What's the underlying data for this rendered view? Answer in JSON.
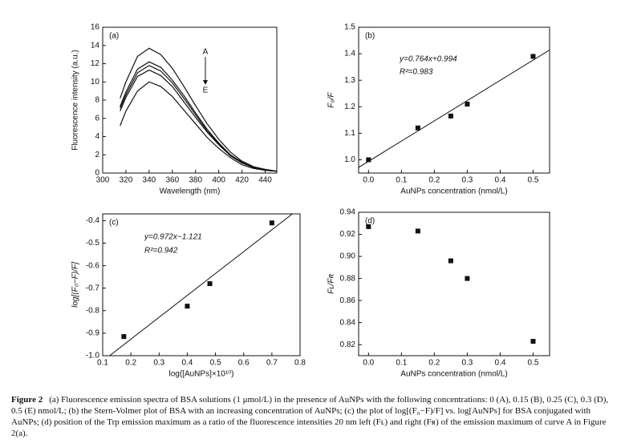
{
  "chart_data": [
    {
      "type": "line",
      "panel": "(a)",
      "xlabel": "Wavelength (nm)",
      "ylabel": "Fluorescence intensity (a.u.)",
      "x": [
        315,
        320,
        330,
        340,
        350,
        360,
        370,
        380,
        390,
        400,
        410,
        420,
        430,
        440,
        450
      ],
      "series": [
        {
          "color": "#111111",
          "values": [
            8.2,
            10.0,
            12.8,
            13.7,
            13.0,
            11.5,
            9.5,
            7.4,
            5.4,
            3.7,
            2.3,
            1.3,
            0.7,
            0.4,
            0.2
          ]
        },
        {
          "color": "#111111",
          "values": [
            7.3,
            8.9,
            11.4,
            12.2,
            11.6,
            10.2,
            8.5,
            6.6,
            4.8,
            3.3,
            2.0,
            1.2,
            0.6,
            0.4,
            0.2
          ]
        },
        {
          "color": "#111111",
          "values": [
            7.1,
            8.6,
            11.0,
            11.8,
            11.2,
            9.9,
            8.2,
            6.4,
            4.6,
            3.2,
            2.0,
            1.1,
            0.6,
            0.3,
            0.2
          ]
        },
        {
          "color": "#111111",
          "values": [
            6.8,
            8.3,
            10.6,
            11.3,
            10.7,
            9.5,
            7.8,
            6.1,
            4.5,
            3.1,
            1.9,
            1.1,
            0.6,
            0.3,
            0.2
          ]
        },
        {
          "color": "#111111",
          "values": [
            5.2,
            6.8,
            9.0,
            10.0,
            9.5,
            8.4,
            6.9,
            5.4,
            3.9,
            2.7,
            1.7,
            0.9,
            0.5,
            0.3,
            0.2
          ]
        }
      ],
      "arrow_start": "A",
      "arrow_end": "E",
      "xlim": [
        300,
        450
      ],
      "xticks": [
        300,
        320,
        340,
        360,
        380,
        400,
        420,
        440
      ],
      "ylim": [
        0,
        16
      ],
      "yticks": [
        0,
        2,
        4,
        6,
        8,
        10,
        12,
        14,
        16
      ]
    },
    {
      "type": "scatter",
      "panel": "(b)",
      "xlabel": "AuNPs concentration (nmol/L)",
      "ylabel": "F₀/F",
      "x": [
        0,
        0.15,
        0.25,
        0.3,
        0.5
      ],
      "values": [
        1.0,
        1.12,
        1.165,
        1.21,
        1.39
      ],
      "color": "#111111",
      "fit": {
        "slope": 0.764,
        "intercept": 0.994
      },
      "equation": "y=0.764x+0.994",
      "r_squared": "R²=0.983",
      "xlim": [
        -0.03,
        0.55
      ],
      "xticks": [
        {
          "value": 0,
          "label": "0.0"
        },
        0.1,
        0.2,
        0.3,
        0.4,
        0.5
      ],
      "ylim": [
        0.95,
        1.5
      ],
      "yticks": [
        {
          "value": 1,
          "label": "1.0"
        },
        1.1,
        1.2,
        1.3,
        1.4,
        1.5
      ]
    },
    {
      "type": "scatter",
      "panel": "(c)",
      "xlabel": "log([AuNPs]×10¹⁰)",
      "ylabel": "log[(F₀−F)/F]",
      "x": [
        0.175,
        0.4,
        0.48,
        0.7
      ],
      "values": [
        -0.915,
        -0.78,
        -0.68,
        -0.41
      ],
      "color": "#111111",
      "fit": {
        "slope": 0.972,
        "intercept": -1.121
      },
      "equation": "y=0.972x−1.121",
      "r_squared": "R²=0.942",
      "xlim": [
        0.1,
        0.8
      ],
      "xticks": [
        0.1,
        0.2,
        0.3,
        0.4,
        0.5,
        0.6,
        0.7,
        0.8
      ],
      "ylim": [
        -1.0,
        -0.37
      ],
      "yticks": [
        {
          "value": -1,
          "label": "-1.0"
        },
        -0.9,
        -0.8,
        -0.7,
        -0.6,
        -0.5,
        -0.4
      ]
    },
    {
      "type": "scatter",
      "panel": "(d)",
      "xlabel": "AuNPs concentration (nmol/L)",
      "ylabel": "Fʟ/Fʀ",
      "x": [
        0,
        0.15,
        0.25,
        0.3,
        0.5
      ],
      "values": [
        0.927,
        0.923,
        0.896,
        0.88,
        0.823
      ],
      "color": "#111111",
      "xlim": [
        -0.03,
        0.55
      ],
      "xticks": [
        {
          "value": 0,
          "label": "0.0"
        },
        0.1,
        0.2,
        0.3,
        0.4,
        0.5
      ],
      "ylim": [
        0.81,
        0.94
      ],
      "yticks": [
        0.82,
        0.84,
        0.86,
        0.88,
        {
          "value": 0.9,
          "label": "0.90"
        },
        0.92,
        0.94
      ]
    }
  ],
  "caption": {
    "label": "Figure 2",
    "text": "(a) Fluorescence emission spectra of BSA solutions (1 μmol/L) in the presence of AuNPs with the following concentrations: 0 (A), 0.15 (B), 0.25 (C), 0.3 (D), 0.5 (E) nmol/L; (b) the Stern-Volmer plot of BSA with an increasing concentration of AuNPs; (c) the plot of log[(F₀−F)/F] vs. log[AuNPs] for BSA conjugated with AuNPs; (d) position of the Trp emission maximum as a ratio of the fluorescence intensities 20 nm left (Fʟ) and right (Fʀ) of the emission maximum of curve A in Figure 2(a)."
  }
}
